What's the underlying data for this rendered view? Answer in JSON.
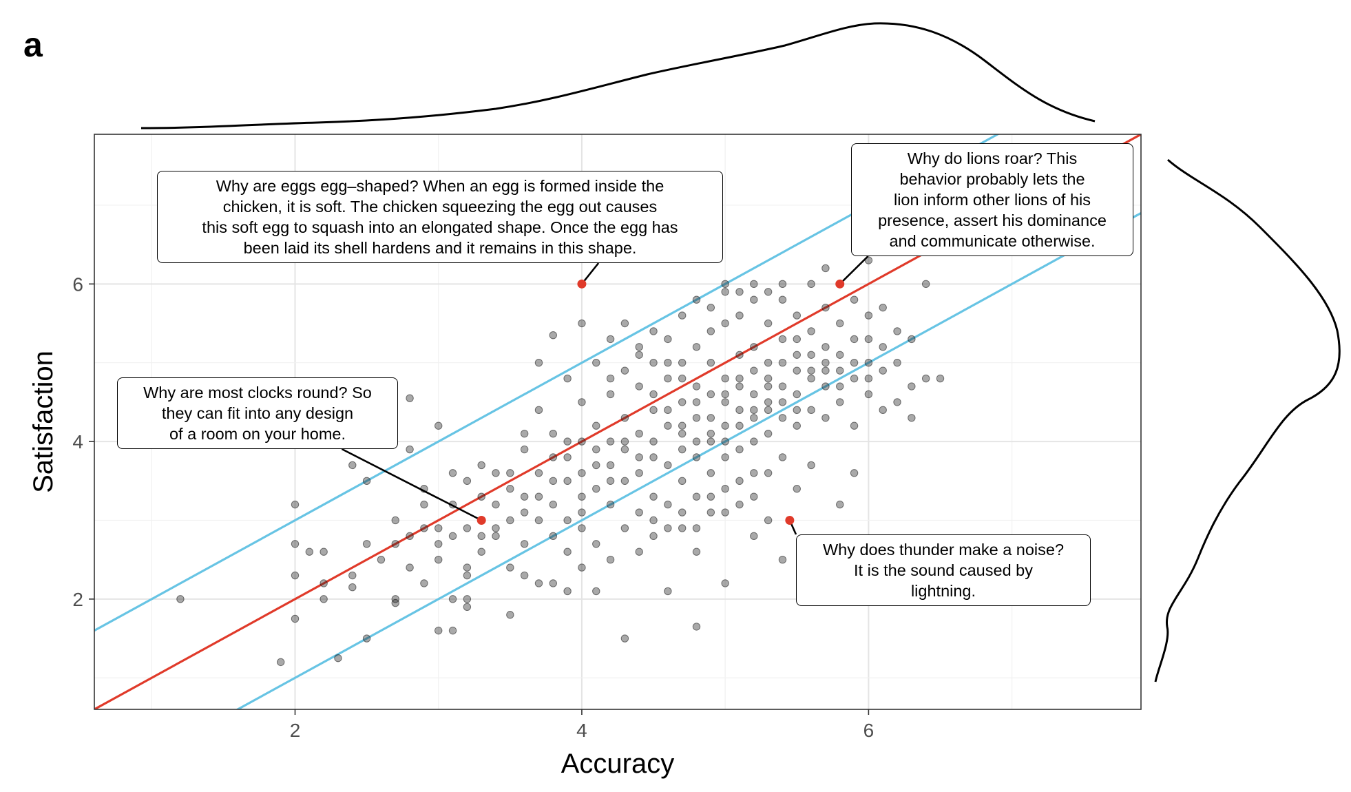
{
  "panel_label": "a",
  "chart_data": {
    "type": "scatter",
    "xlabel": "Accuracy",
    "ylabel": "Satisfaction",
    "xlim": [
      0.6,
      7.9
    ],
    "ylim": [
      0.6,
      7.9
    ],
    "x_ticks": [
      2,
      4,
      6
    ],
    "y_ticks": [
      2,
      4,
      6
    ],
    "grid": true,
    "fit_line": {
      "intercept": 0.0,
      "slope": 1.0,
      "color": "#e03a2a"
    },
    "band_lines": [
      {
        "intercept": 1.0,
        "slope": 1.0,
        "color": "#67c4e4"
      },
      {
        "intercept": -1.0,
        "slope": 1.0,
        "color": "#67c4e4"
      }
    ],
    "point_color": "rgba(40,40,40,0.4)",
    "highlight_color": "#e03a2a",
    "marginal_densities": {
      "top": "Accuracy density",
      "right": "Satisfaction density"
    },
    "points": [
      [
        1.2,
        2.0
      ],
      [
        1.9,
        1.2
      ],
      [
        2.0,
        3.2
      ],
      [
        2.0,
        2.7
      ],
      [
        2.0,
        2.3
      ],
      [
        2.0,
        1.75
      ],
      [
        2.1,
        2.6
      ],
      [
        2.2,
        2.6
      ],
      [
        2.2,
        2.0
      ],
      [
        2.2,
        2.2
      ],
      [
        2.3,
        1.25
      ],
      [
        2.4,
        2.3
      ],
      [
        2.4,
        2.15
      ],
      [
        2.4,
        3.7
      ],
      [
        2.5,
        3.5
      ],
      [
        2.5,
        2.7
      ],
      [
        2.5,
        1.5
      ],
      [
        2.6,
        2.5
      ],
      [
        2.6,
        4.0
      ],
      [
        2.7,
        3.0
      ],
      [
        2.7,
        2.7
      ],
      [
        2.7,
        2.0
      ],
      [
        2.7,
        1.95
      ],
      [
        2.8,
        3.9
      ],
      [
        2.8,
        2.8
      ],
      [
        2.8,
        2.4
      ],
      [
        2.8,
        4.55
      ],
      [
        2.9,
        2.2
      ],
      [
        2.9,
        2.9
      ],
      [
        2.9,
        3.2
      ],
      [
        2.9,
        3.4
      ],
      [
        3.0,
        4.2
      ],
      [
        3.0,
        2.5
      ],
      [
        3.0,
        2.9
      ],
      [
        3.0,
        2.7
      ],
      [
        3.0,
        1.6
      ],
      [
        3.1,
        2.8
      ],
      [
        3.1,
        3.2
      ],
      [
        3.1,
        2.0
      ],
      [
        3.1,
        1.6
      ],
      [
        3.1,
        3.6
      ],
      [
        3.2,
        2.9
      ],
      [
        3.2,
        2.4
      ],
      [
        3.2,
        2.3
      ],
      [
        3.2,
        3.5
      ],
      [
        3.2,
        2.0
      ],
      [
        3.2,
        1.9
      ],
      [
        3.3,
        3.7
      ],
      [
        3.3,
        2.8
      ],
      [
        3.3,
        3.3
      ],
      [
        3.3,
        2.6
      ],
      [
        3.3,
        3.0
      ],
      [
        3.4,
        3.2
      ],
      [
        3.4,
        2.8
      ],
      [
        3.4,
        2.9
      ],
      [
        3.4,
        3.6
      ],
      [
        3.5,
        3.4
      ],
      [
        3.5,
        3.0
      ],
      [
        3.5,
        2.4
      ],
      [
        3.5,
        1.8
      ],
      [
        3.6,
        3.9
      ],
      [
        3.6,
        3.3
      ],
      [
        3.6,
        2.7
      ],
      [
        3.6,
        4.1
      ],
      [
        3.6,
        2.3
      ],
      [
        3.7,
        3.6
      ],
      [
        3.7,
        3.0
      ],
      [
        3.7,
        4.4
      ],
      [
        3.7,
        2.2
      ],
      [
        3.7,
        5.0
      ],
      [
        3.8,
        3.2
      ],
      [
        3.8,
        3.8
      ],
      [
        3.8,
        2.8
      ],
      [
        3.8,
        2.2
      ],
      [
        3.8,
        4.1
      ],
      [
        3.8,
        5.35
      ],
      [
        3.9,
        3.5
      ],
      [
        3.9,
        4.0
      ],
      [
        3.9,
        2.6
      ],
      [
        3.9,
        3.0
      ],
      [
        3.9,
        4.8
      ],
      [
        3.9,
        2.1
      ],
      [
        4.0,
        4.5
      ],
      [
        4.0,
        3.6
      ],
      [
        4.0,
        3.1
      ],
      [
        4.0,
        2.4
      ],
      [
        4.0,
        4.0
      ],
      [
        4.0,
        5.5
      ],
      [
        4.0,
        2.9
      ],
      [
        4.1,
        3.4
      ],
      [
        4.1,
        4.2
      ],
      [
        4.1,
        2.7
      ],
      [
        4.1,
        3.9
      ],
      [
        4.1,
        5.0
      ],
      [
        4.1,
        2.1
      ],
      [
        4.2,
        3.7
      ],
      [
        4.2,
        4.6
      ],
      [
        4.2,
        3.2
      ],
      [
        4.2,
        2.5
      ],
      [
        4.2,
        4.0
      ],
      [
        4.2,
        5.3
      ],
      [
        4.3,
        4.3
      ],
      [
        4.3,
        3.5
      ],
      [
        4.3,
        2.9
      ],
      [
        4.3,
        3.9
      ],
      [
        4.3,
        5.5
      ],
      [
        4.3,
        1.5
      ],
      [
        4.4,
        4.1
      ],
      [
        4.4,
        3.6
      ],
      [
        4.4,
        4.7
      ],
      [
        4.4,
        3.1
      ],
      [
        4.4,
        2.6
      ],
      [
        4.4,
        5.1
      ],
      [
        4.5,
        3.8
      ],
      [
        4.5,
        4.4
      ],
      [
        4.5,
        3.3
      ],
      [
        4.5,
        5.0
      ],
      [
        4.5,
        2.8
      ],
      [
        4.5,
        4.0
      ],
      [
        4.6,
        4.2
      ],
      [
        4.6,
        3.7
      ],
      [
        4.6,
        4.8
      ],
      [
        4.6,
        3.2
      ],
      [
        4.6,
        5.3
      ],
      [
        4.6,
        2.1
      ],
      [
        4.7,
        4.5
      ],
      [
        4.7,
        3.9
      ],
      [
        4.7,
        3.5
      ],
      [
        4.7,
        5.0
      ],
      [
        4.7,
        2.9
      ],
      [
        4.7,
        4.1
      ],
      [
        4.8,
        4.3
      ],
      [
        4.8,
        3.8
      ],
      [
        4.8,
        5.2
      ],
      [
        4.8,
        4.7
      ],
      [
        4.8,
        3.3
      ],
      [
        4.8,
        2.6
      ],
      [
        4.8,
        1.65
      ],
      [
        4.9,
        4.6
      ],
      [
        4.9,
        4.0
      ],
      [
        4.9,
        5.4
      ],
      [
        4.9,
        3.6
      ],
      [
        4.9,
        5.0
      ],
      [
        4.9,
        3.1
      ],
      [
        5.0,
        4.8
      ],
      [
        5.0,
        4.2
      ],
      [
        5.0,
        3.8
      ],
      [
        5.0,
        5.5
      ],
      [
        5.0,
        4.5
      ],
      [
        5.0,
        3.4
      ],
      [
        5.0,
        5.9
      ],
      [
        5.0,
        2.2
      ],
      [
        5.1,
        5.1
      ],
      [
        5.1,
        4.4
      ],
      [
        5.1,
        3.9
      ],
      [
        5.1,
        4.8
      ],
      [
        5.1,
        5.6
      ],
      [
        5.1,
        3.2
      ],
      [
        5.2,
        4.6
      ],
      [
        5.2,
        5.2
      ],
      [
        5.2,
        4.0
      ],
      [
        5.2,
        5.8
      ],
      [
        5.2,
        4.3
      ],
      [
        5.2,
        3.6
      ],
      [
        5.2,
        2.8
      ],
      [
        5.3,
        5.0
      ],
      [
        5.3,
        4.5
      ],
      [
        5.3,
        5.5
      ],
      [
        5.3,
        4.1
      ],
      [
        5.3,
        4.8
      ],
      [
        5.3,
        3.0
      ],
      [
        5.4,
        4.7
      ],
      [
        5.4,
        5.3
      ],
      [
        5.4,
        4.3
      ],
      [
        5.4,
        5.8
      ],
      [
        5.4,
        3.8
      ],
      [
        5.4,
        2.5
      ],
      [
        5.5,
        5.1
      ],
      [
        5.5,
        4.6
      ],
      [
        5.5,
        5.6
      ],
      [
        5.5,
        4.2
      ],
      [
        5.5,
        4.9
      ],
      [
        5.5,
        3.4
      ],
      [
        5.6,
        4.9
      ],
      [
        5.6,
        5.4
      ],
      [
        5.6,
        4.4
      ],
      [
        5.6,
        6.0
      ],
      [
        5.6,
        3.7
      ],
      [
        5.7,
        5.2
      ],
      [
        5.7,
        4.7
      ],
      [
        5.7,
        5.7
      ],
      [
        5.7,
        4.3
      ],
      [
        5.7,
        5.0
      ],
      [
        5.7,
        6.2
      ],
      [
        5.8,
        5.5
      ],
      [
        5.8,
        4.9
      ],
      [
        5.8,
        5.1
      ],
      [
        5.8,
        4.5
      ],
      [
        5.8,
        3.2
      ],
      [
        5.9,
        5.3
      ],
      [
        5.9,
        5.8
      ],
      [
        5.9,
        4.8
      ],
      [
        5.9,
        4.2
      ],
      [
        5.9,
        3.6
      ],
      [
        6.0,
        5.6
      ],
      [
        6.0,
        5.0
      ],
      [
        6.0,
        5.3
      ],
      [
        6.0,
        4.6
      ],
      [
        6.0,
        6.3
      ],
      [
        6.1,
        5.2
      ],
      [
        6.1,
        5.7
      ],
      [
        6.1,
        4.9
      ],
      [
        6.1,
        4.4
      ],
      [
        6.2,
        5.4
      ],
      [
        6.2,
        5.0
      ],
      [
        6.2,
        4.5
      ],
      [
        6.3,
        5.3
      ],
      [
        6.3,
        4.7
      ],
      [
        6.3,
        4.3
      ],
      [
        6.4,
        6.0
      ],
      [
        6.4,
        4.8
      ],
      [
        6.5,
        4.8
      ],
      [
        4.5,
        4.6
      ],
      [
        4.6,
        4.4
      ],
      [
        4.7,
        4.8
      ],
      [
        4.8,
        4.5
      ],
      [
        4.9,
        4.3
      ],
      [
        5.0,
        4.6
      ],
      [
        5.1,
        4.7
      ],
      [
        5.2,
        4.9
      ],
      [
        5.3,
        4.7
      ],
      [
        5.4,
        5.0
      ],
      [
        5.5,
        5.3
      ],
      [
        5.6,
        5.1
      ],
      [
        4.3,
        4.0
      ],
      [
        4.4,
        3.8
      ],
      [
        4.2,
        3.5
      ],
      [
        4.1,
        3.7
      ],
      [
        4.0,
        3.3
      ],
      [
        3.9,
        3.8
      ],
      [
        3.8,
        3.5
      ],
      [
        3.7,
        3.3
      ],
      [
        3.6,
        3.1
      ],
      [
        3.5,
        3.6
      ],
      [
        4.6,
        5.0
      ],
      [
        4.7,
        5.6
      ],
      [
        4.8,
        5.8
      ],
      [
        4.9,
        5.7
      ],
      [
        5.0,
        6.0
      ],
      [
        5.1,
        5.9
      ],
      [
        5.2,
        6.0
      ],
      [
        5.3,
        5.9
      ],
      [
        5.4,
        6.0
      ],
      [
        4.5,
        5.4
      ],
      [
        4.4,
        5.2
      ],
      [
        4.3,
        4.9
      ],
      [
        4.2,
        4.8
      ],
      [
        4.9,
        3.3
      ],
      [
        5.0,
        3.1
      ],
      [
        5.1,
        3.5
      ],
      [
        5.2,
        3.3
      ],
      [
        5.3,
        3.6
      ],
      [
        4.5,
        3.0
      ],
      [
        4.6,
        2.9
      ],
      [
        4.7,
        3.1
      ],
      [
        4.8,
        2.9
      ],
      [
        5.6,
        4.8
      ],
      [
        5.7,
        4.9
      ],
      [
        5.8,
        4.7
      ],
      [
        5.9,
        5.0
      ],
      [
        6.0,
        4.8
      ],
      [
        5.5,
        4.4
      ],
      [
        5.4,
        4.5
      ],
      [
        5.3,
        4.4
      ],
      [
        5.2,
        4.4
      ],
      [
        5.1,
        4.2
      ],
      [
        5.0,
        4.0
      ],
      [
        4.9,
        4.1
      ],
      [
        4.8,
        4.0
      ],
      [
        4.7,
        4.2
      ]
    ],
    "highlights": [
      {
        "x": 4.0,
        "y": 6.0,
        "text": "Why are eggs egg–shaped? When an egg is formed inside the\nchicken, it is soft. The chicken squeezing the egg out causes\nthis soft egg to squash into an elongated shape. Once the egg has\nbeen laid its shell hardens and it remains in this shape."
      },
      {
        "x": 5.8,
        "y": 6.0,
        "text": "Why do lions roar? This\nbehavior probably lets the\nlion inform other lions of his\npresence, assert his dominance\nand communicate otherwise."
      },
      {
        "x": 3.3,
        "y": 3.0,
        "text": "Why are most clocks round? So\nthey can fit into any design\nof a room on your home."
      },
      {
        "x": 5.45,
        "y": 3.0,
        "text": "Why does thunder make a noise?\nIt is the sound caused by\nlightning."
      }
    ]
  }
}
